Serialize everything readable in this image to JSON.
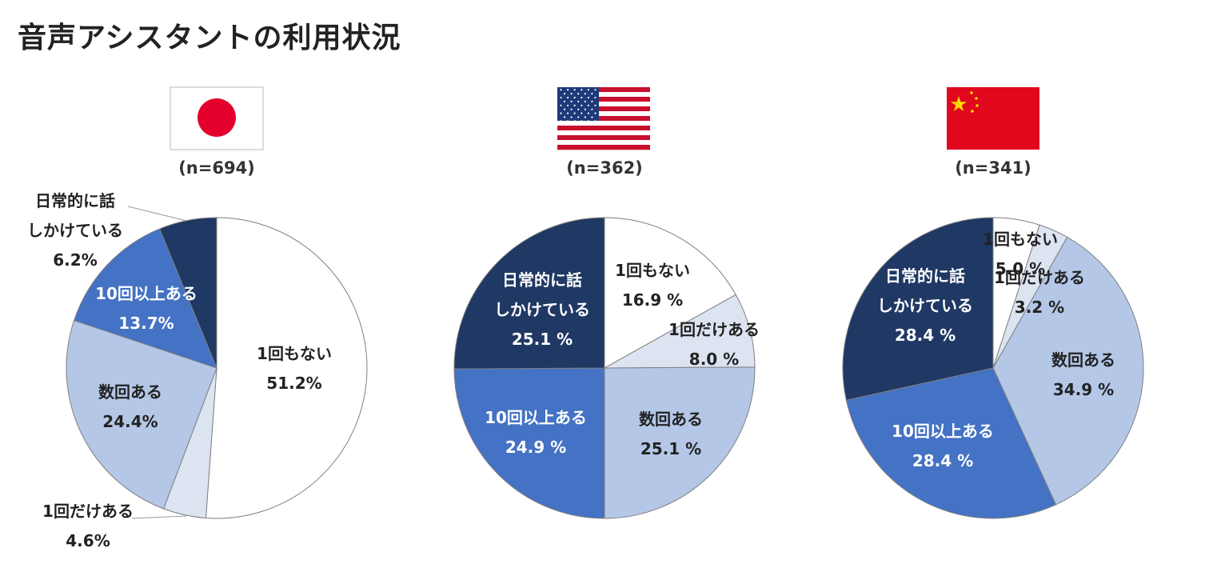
{
  "page": {
    "title": "音声アシスタントの利用状況"
  },
  "flags": [
    {
      "name": "japan-flag-icon",
      "colors": {
        "bg": "#ffffff",
        "disc": "#e3002c"
      }
    },
    {
      "name": "usa-flag-icon",
      "colors": {
        "stripe": "#c8102e",
        "canton": "#1f3a7a"
      }
    },
    {
      "name": "china-flag-icon",
      "colors": {
        "bg": "#e1071c",
        "star": "#ffd800"
      }
    }
  ],
  "chart_data": [
    {
      "type": "pie",
      "sample": "(n=694)",
      "slices": [
        {
          "category": "1回もない",
          "value": 51.2,
          "label": "51.2%",
          "color": "#ffffff"
        },
        {
          "category": "1回だけある",
          "value": 4.6,
          "label": "4.6%",
          "color": "#dce4f2"
        },
        {
          "category": "数回ある",
          "value": 24.4,
          "label": "24.4%",
          "color": "#b4c7e7"
        },
        {
          "category": "10回以上ある",
          "value": 13.7,
          "label": "13.7%",
          "color": "#4472c4"
        },
        {
          "category": "日常的に話しかけている",
          "value": 6.2,
          "label": "6.2%",
          "color": "#1f3864"
        }
      ]
    },
    {
      "type": "pie",
      "sample": "(n=362)",
      "slices": [
        {
          "category": "1回もない",
          "value": 16.9,
          "label": "16.9 %",
          "color": "#ffffff"
        },
        {
          "category": "1回だけある",
          "value": 8.0,
          "label": "8.0 %",
          "color": "#dce4f2"
        },
        {
          "category": "数回ある",
          "value": 25.1,
          "label": "25.1 %",
          "color": "#b4c7e7"
        },
        {
          "category": "10回以上ある",
          "value": 24.9,
          "label": "24.9 %",
          "color": "#4472c4"
        },
        {
          "category": "日常的に話しかけている",
          "value": 25.1,
          "label": "25.1 %",
          "color": "#1f3864"
        }
      ]
    },
    {
      "type": "pie",
      "sample": "(n=341)",
      "slices": [
        {
          "category": "1回もない",
          "value": 5.0,
          "label": "5.0 %",
          "color": "#ffffff"
        },
        {
          "category": "1回だけある",
          "value": 3.2,
          "label": "3.2 %",
          "color": "#dce4f2"
        },
        {
          "category": "数回ある",
          "value": 34.9,
          "label": "34.9 %",
          "color": "#b4c7e7"
        },
        {
          "category": "10回以上ある",
          "value": 28.4,
          "label": "28.4 %",
          "color": "#4472c4"
        },
        {
          "category": "日常的に話しかけている",
          "value": 28.4,
          "label": "28.4 %",
          "color": "#1f3864"
        }
      ]
    }
  ]
}
